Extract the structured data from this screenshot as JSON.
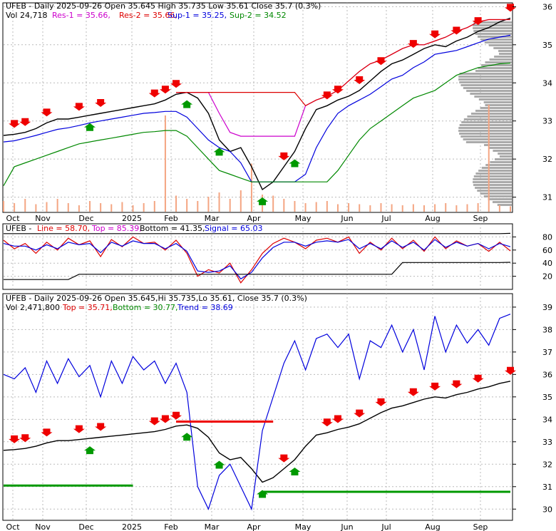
{
  "colors": {
    "price": "#000000",
    "res": "#cc00cc",
    "res2": "#dd0000",
    "sup1": "#0000dd",
    "sup2": "#008800",
    "volume": "#f4a582",
    "arrow_down": "#ee0000",
    "arrow_up": "#009900",
    "grid": "#bbbbbb",
    "profile": "#aaaaaa"
  },
  "panel1": {
    "label_symbol": "UFEB - Daily 2025-09-26 Open 35.645  High 35.735  Low 35.61  Close 35.7 (0.3%)",
    "label_vol": "Vol 24,718",
    "label_res1": "Res-1 = 35.66,",
    "label_res2": "Res-2 = 35.66,",
    "label_sup1": "Sup-1 = 35.25,",
    "label_sup2": "Sup-2 = 34.52"
  },
  "panel2": {
    "label_symbol": "UFEB - ",
    "label_line": "Line = 58.70,",
    "label_top": "Top = 85.39,",
    "label_bottom": "Bottom = 41.35,",
    "label_signal": "Signal = 65.03"
  },
  "panel3": {
    "label_symbol": "UFEB - Daily 2025-09-26 Open 35.645,Hi 35.735,Lo 35.61, Close 35.7 (0.3%)",
    "label_vol": "Vol 2,471,800",
    "label_top": "Top = 35.71,",
    "label_bottom": "Bottom = 30.77,",
    "label_trend": "Trend = 38.69"
  },
  "chart_data": [
    {
      "type": "line",
      "title": "UFEB - Daily 2025-09-26",
      "x_ticks": [
        "Oct",
        "Nov",
        "Dec",
        "2025",
        "Feb",
        "Mar",
        "Apr",
        "May",
        "Jun",
        "Jul",
        "Aug",
        "Sep"
      ],
      "y_ticks": [
        31,
        32,
        33,
        34,
        35,
        36
      ],
      "ylim": [
        30.6,
        36.1
      ],
      "series": [
        {
          "name": "Close",
          "values": [
            32.62,
            32.65,
            32.7,
            32.8,
            32.95,
            33.05,
            33.05,
            33.1,
            33.15,
            33.2,
            33.25,
            33.3,
            33.35,
            33.4,
            33.45,
            33.55,
            33.7,
            33.75,
            33.6,
            33.2,
            32.5,
            32.2,
            32.3,
            31.8,
            31.2,
            31.4,
            31.8,
            32.2,
            32.8,
            33.3,
            33.4,
            33.55,
            33.65,
            33.8,
            34.05,
            34.3,
            34.5,
            34.6,
            34.75,
            34.9,
            35.0,
            34.95,
            35.1,
            35.2,
            35.35,
            35.45,
            35.6,
            35.7
          ]
        },
        {
          "name": "Res-1",
          "values": [
            null,
            null,
            null,
            null,
            null,
            null,
            null,
            null,
            null,
            null,
            null,
            null,
            null,
            null,
            null,
            null,
            33.75,
            33.75,
            33.75,
            33.75,
            33.2,
            32.7,
            32.6,
            32.6,
            32.6,
            32.6,
            32.6,
            32.6,
            33.4,
            33.55,
            33.65,
            33.8,
            34.05,
            34.3,
            34.5,
            34.6,
            34.75,
            34.9,
            35.0,
            35.0,
            35.1,
            35.2,
            35.35,
            35.45,
            35.6,
            35.66,
            35.66,
            35.66
          ]
        },
        {
          "name": "Res-2",
          "values": [
            null,
            null,
            null,
            null,
            null,
            null,
            null,
            null,
            null,
            null,
            null,
            null,
            null,
            null,
            null,
            null,
            33.75,
            33.75,
            33.75,
            33.75,
            33.75,
            33.75,
            33.75,
            33.75,
            33.75,
            33.75,
            33.75,
            33.75,
            33.4,
            33.55,
            33.65,
            33.8,
            34.05,
            34.3,
            34.5,
            34.6,
            34.75,
            34.9,
            35.0,
            35.0,
            35.1,
            35.2,
            35.35,
            35.45,
            35.6,
            35.66,
            35.66,
            35.66
          ]
        },
        {
          "name": "Sup-1",
          "values": [
            32.45,
            32.48,
            32.55,
            32.62,
            32.7,
            32.78,
            32.82,
            32.88,
            32.95,
            33.0,
            33.05,
            33.1,
            33.15,
            33.2,
            33.22,
            33.25,
            33.25,
            33.1,
            32.8,
            32.5,
            32.3,
            32.2,
            31.9,
            31.4,
            31.4,
            31.4,
            31.4,
            31.4,
            31.6,
            32.3,
            32.8,
            33.2,
            33.4,
            33.55,
            33.7,
            33.9,
            34.1,
            34.2,
            34.4,
            34.55,
            34.75,
            34.8,
            34.85,
            34.95,
            35.05,
            35.15,
            35.2,
            35.25
          ]
        },
        {
          "name": "Sup-2",
          "values": [
            31.3,
            31.8,
            31.9,
            32.0,
            32.1,
            32.2,
            32.3,
            32.4,
            32.45,
            32.5,
            32.55,
            32.6,
            32.65,
            32.7,
            32.72,
            32.75,
            32.75,
            32.6,
            32.3,
            32.0,
            31.7,
            31.6,
            31.5,
            31.4,
            31.4,
            31.4,
            31.4,
            31.4,
            31.4,
            31.4,
            31.4,
            31.7,
            32.1,
            32.5,
            32.8,
            33.0,
            33.2,
            33.4,
            33.6,
            33.7,
            33.8,
            34.0,
            34.2,
            34.3,
            34.4,
            34.45,
            34.5,
            34.52
          ]
        }
      ],
      "volume_spikes": [
        0.1,
        0.08,
        0.12,
        0.07,
        0.09,
        0.12,
        0.08,
        0.06,
        0.1,
        0.08,
        0.07,
        0.09,
        0.06,
        0.08,
        0.1,
        0.9,
        0.15,
        0.12,
        0.1,
        0.14,
        0.18,
        0.12,
        0.2,
        0.45,
        0.16,
        0.15,
        0.12,
        0.1,
        0.08,
        0.09,
        0.1,
        0.07,
        0.08,
        0.07,
        0.06,
        0.08,
        0.07,
        0.06,
        0.07,
        0.06,
        0.07,
        0.08,
        0.06,
        0.07,
        0.08,
        1.0,
        0.06,
        0.05
      ]
    },
    {
      "type": "line",
      "y_ticks": [
        20,
        40,
        60,
        80
      ],
      "ylim": [
        0,
        100
      ],
      "series": [
        {
          "name": "Line",
          "values": [
            75,
            62,
            70,
            55,
            72,
            60,
            78,
            68,
            74,
            50,
            76,
            65,
            80,
            70,
            72,
            60,
            75,
            55,
            20,
            30,
            25,
            40,
            10,
            30,
            55,
            70,
            78,
            72,
            62,
            75,
            78,
            72,
            80,
            55,
            72,
            60,
            78,
            62,
            75,
            58,
            80,
            62,
            74,
            66,
            70,
            58,
            72,
            58.7
          ]
        },
        {
          "name": "Signal",
          "values": [
            70,
            66,
            66,
            60,
            68,
            62,
            72,
            68,
            70,
            56,
            72,
            66,
            74,
            70,
            70,
            62,
            70,
            58,
            28,
            26,
            28,
            36,
            16,
            26,
            48,
            64,
            72,
            72,
            66,
            72,
            74,
            72,
            76,
            62,
            70,
            62,
            74,
            64,
            72,
            60,
            76,
            64,
            72,
            66,
            70,
            62,
            70,
            65.03
          ]
        },
        {
          "name": "Top",
          "values": [
            85,
            85,
            85,
            85,
            85,
            85,
            85,
            85,
            85,
            85,
            85,
            85,
            85,
            85,
            85,
            85,
            85,
            85,
            85,
            85,
            85,
            85,
            85,
            85,
            85,
            85,
            85,
            85,
            85,
            85,
            85,
            85,
            85,
            85,
            85,
            85,
            85,
            85,
            85,
            85,
            85,
            85,
            85,
            85,
            85,
            85,
            85,
            85.39
          ]
        },
        {
          "name": "Bottom",
          "values": [
            15,
            15,
            15,
            15,
            15,
            15,
            15,
            23,
            23,
            23,
            23,
            23,
            23,
            23,
            23,
            23,
            23,
            23,
            23,
            23,
            23,
            23,
            23,
            23,
            23,
            23,
            23,
            23,
            23,
            23,
            23,
            23,
            23,
            23,
            23,
            23,
            23,
            41,
            41,
            41,
            41,
            41,
            41,
            41,
            41,
            41,
            41,
            41.35
          ]
        }
      ]
    },
    {
      "type": "line",
      "y_ticks": [
        30,
        31,
        32,
        33,
        34,
        35,
        36,
        37,
        38,
        39
      ],
      "ylim": [
        29.5,
        39.6
      ],
      "series": [
        {
          "name": "Close",
          "values": [
            32.62,
            32.65,
            32.7,
            32.8,
            32.95,
            33.05,
            33.05,
            33.1,
            33.15,
            33.2,
            33.25,
            33.3,
            33.35,
            33.4,
            33.45,
            33.55,
            33.7,
            33.75,
            33.6,
            33.2,
            32.5,
            32.2,
            32.3,
            31.8,
            31.2,
            31.4,
            31.8,
            32.2,
            32.8,
            33.3,
            33.4,
            33.55,
            33.65,
            33.8,
            34.05,
            34.3,
            34.5,
            34.6,
            34.75,
            34.9,
            35.0,
            34.95,
            35.1,
            35.2,
            35.35,
            35.45,
            35.6,
            35.7
          ]
        },
        {
          "name": "Trend",
          "values": [
            36.0,
            35.8,
            36.3,
            35.2,
            36.6,
            35.6,
            36.7,
            35.9,
            36.4,
            35.0,
            36.6,
            35.6,
            36.8,
            36.2,
            36.6,
            35.6,
            36.5,
            35.2,
            31.0,
            30.0,
            31.5,
            32.0,
            31.0,
            30.0,
            33.5,
            35.0,
            36.5,
            37.5,
            36.2,
            37.6,
            37.8,
            37.2,
            37.8,
            35.8,
            37.5,
            37.2,
            38.2,
            37.0,
            38.0,
            36.2,
            38.6,
            37.0,
            38.2,
            37.4,
            38.0,
            37.3,
            38.5,
            38.69
          ]
        },
        {
          "name": "Top",
          "values": [
            null,
            null,
            null,
            null,
            null,
            null,
            null,
            null,
            null,
            null,
            null,
            null,
            null,
            null,
            null,
            null,
            33.9,
            33.9,
            33.9,
            33.9,
            33.9,
            33.9,
            33.9,
            33.9,
            33.9,
            33.9,
            null,
            null,
            null,
            null,
            null,
            null,
            null,
            null,
            null,
            null,
            null,
            null,
            null,
            null,
            null,
            null,
            null,
            null,
            null,
            null,
            null,
            35.71
          ]
        },
        {
          "name": "Bottom",
          "values": [
            31.05,
            31.05,
            31.05,
            31.05,
            31.05,
            31.05,
            31.05,
            31.05,
            31.05,
            31.05,
            31.05,
            31.05,
            31.05,
            null,
            null,
            null,
            null,
            null,
            null,
            null,
            null,
            null,
            null,
            null,
            30.77,
            30.77,
            30.77,
            30.77,
            30.77,
            30.77,
            30.77,
            30.77,
            30.77,
            30.77,
            30.77,
            30.77,
            30.77,
            30.77,
            30.77,
            30.77,
            30.77,
            30.77,
            30.77,
            30.77,
            30.77,
            30.77,
            30.77,
            30.77
          ]
        }
      ]
    }
  ]
}
